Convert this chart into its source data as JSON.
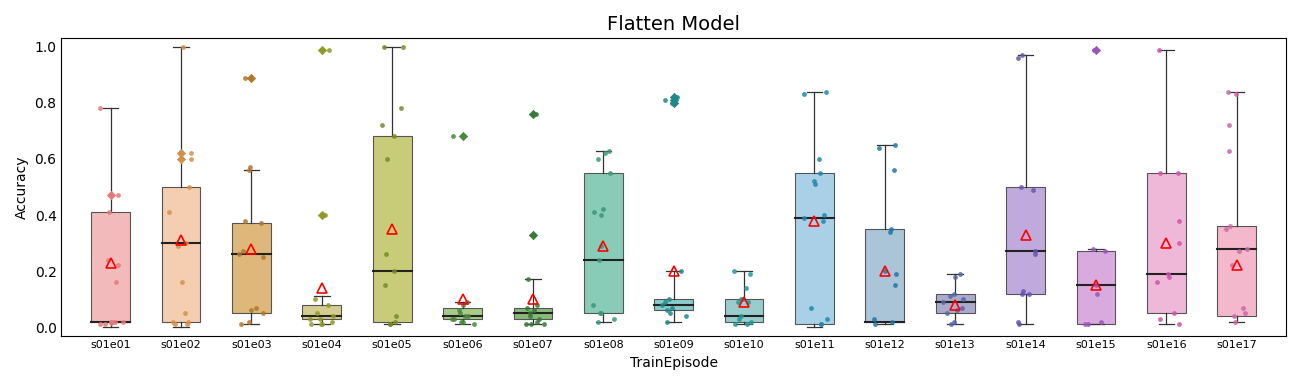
{
  "title": "Flatten Model",
  "xlabel": "TrainEpisode",
  "ylabel": "Accuracy",
  "ylim": [
    -0.03,
    1.03
  ],
  "categories": [
    "s01e01",
    "s01e02",
    "s01e03",
    "s01e04",
    "s01e05",
    "s01e06",
    "s01e07",
    "s01e08",
    "s01e09",
    "s01e10",
    "s01e11",
    "s01e12",
    "s01e13",
    "s01e14",
    "s01e15",
    "s01e16",
    "s01e17"
  ],
  "box_colors": [
    "#f2baba",
    "#f5cdb0",
    "#deb87a",
    "#d4cc90",
    "#c8cc78",
    "#a8cc88",
    "#88bb78",
    "#88ccb8",
    "#88cccc",
    "#99cccc",
    "#aad0e8",
    "#aac4d8",
    "#aaaacc",
    "#c0aadd",
    "#d8aadd",
    "#f0b8d8",
    "#f4b8cc"
  ],
  "dot_colors": [
    "#e87878",
    "#d4904a",
    "#b07828",
    "#909828",
    "#788828",
    "#488840",
    "#387838",
    "#389878",
    "#208888",
    "#209898",
    "#2088aa",
    "#2077aa",
    "#5566aa",
    "#6655aa",
    "#9955bb",
    "#cc55aa",
    "#cc66aa"
  ],
  "box_stats": {
    "s01e01": {
      "whislo": 0.0,
      "q1": 0.02,
      "med": 0.02,
      "q3": 0.41,
      "whishi": 0.78,
      "mean": 0.23,
      "fliers": [
        0.47
      ]
    },
    "s01e02": {
      "whislo": 0.0,
      "q1": 0.02,
      "med": 0.3,
      "q3": 0.5,
      "whishi": 1.0,
      "mean": 0.31,
      "fliers": [
        0.6,
        0.62
      ]
    },
    "s01e03": {
      "whislo": 0.01,
      "q1": 0.05,
      "med": 0.26,
      "q3": 0.37,
      "whishi": 0.56,
      "mean": 0.28,
      "fliers": [
        0.89
      ]
    },
    "s01e04": {
      "whislo": 0.01,
      "q1": 0.03,
      "med": 0.04,
      "q3": 0.08,
      "whishi": 0.11,
      "mean": 0.14,
      "fliers": [
        0.4,
        0.99
      ]
    },
    "s01e05": {
      "whislo": 0.01,
      "q1": 0.02,
      "med": 0.2,
      "q3": 0.68,
      "whishi": 1.0,
      "mean": 0.35,
      "fliers": []
    },
    "s01e06": {
      "whislo": 0.01,
      "q1": 0.03,
      "med": 0.04,
      "q3": 0.07,
      "whishi": 0.09,
      "mean": 0.1,
      "fliers": [
        0.68
      ]
    },
    "s01e07": {
      "whislo": 0.01,
      "q1": 0.03,
      "med": 0.05,
      "q3": 0.07,
      "whishi": 0.17,
      "mean": 0.1,
      "fliers": [
        0.33,
        0.76
      ]
    },
    "s01e08": {
      "whislo": 0.02,
      "q1": 0.05,
      "med": 0.24,
      "q3": 0.55,
      "whishi": 0.63,
      "mean": 0.29,
      "fliers": []
    },
    "s01e09": {
      "whislo": 0.02,
      "q1": 0.06,
      "med": 0.08,
      "q3": 0.1,
      "whishi": 0.2,
      "mean": 0.2,
      "fliers": [
        0.8,
        0.81,
        0.82
      ]
    },
    "s01e10": {
      "whislo": 0.01,
      "q1": 0.02,
      "med": 0.04,
      "q3": 0.1,
      "whishi": 0.2,
      "mean": 0.09,
      "fliers": []
    },
    "s01e11": {
      "whislo": 0.0,
      "q1": 0.01,
      "med": 0.39,
      "q3": 0.55,
      "whishi": 0.84,
      "mean": 0.38,
      "fliers": []
    },
    "s01e12": {
      "whislo": 0.01,
      "q1": 0.02,
      "med": 0.02,
      "q3": 0.35,
      "whishi": 0.65,
      "mean": 0.2,
      "fliers": []
    },
    "s01e13": {
      "whislo": 0.01,
      "q1": 0.05,
      "med": 0.09,
      "q3": 0.12,
      "whishi": 0.19,
      "mean": 0.08,
      "fliers": []
    },
    "s01e14": {
      "whislo": 0.01,
      "q1": 0.12,
      "med": 0.27,
      "q3": 0.5,
      "whishi": 0.97,
      "mean": 0.33,
      "fliers": []
    },
    "s01e15": {
      "whislo": 0.01,
      "q1": 0.01,
      "med": 0.15,
      "q3": 0.27,
      "whishi": 0.28,
      "mean": 0.15,
      "fliers": [
        0.99
      ]
    },
    "s01e16": {
      "whislo": 0.01,
      "q1": 0.05,
      "med": 0.19,
      "q3": 0.55,
      "whishi": 0.99,
      "mean": 0.3,
      "fliers": []
    },
    "s01e17": {
      "whislo": 0.02,
      "q1": 0.04,
      "med": 0.28,
      "q3": 0.36,
      "whishi": 0.84,
      "mean": 0.22,
      "fliers": []
    }
  },
  "strip_data": {
    "s01e01": [
      0.78,
      0.47,
      0.41,
      0.16,
      0.02,
      0.02,
      0.015,
      0.01,
      0.01,
      0.02,
      0.02,
      0.22,
      0.24
    ],
    "s01e02": [
      1.0,
      0.62,
      0.6,
      0.5,
      0.41,
      0.3,
      0.29,
      0.16,
      0.05,
      0.02,
      0.01,
      0.01,
      0.02
    ],
    "s01e03": [
      0.89,
      0.57,
      0.56,
      0.38,
      0.37,
      0.27,
      0.26,
      0.25,
      0.07,
      0.06,
      0.05,
      0.02,
      0.01
    ],
    "s01e04": [
      0.99,
      0.4,
      0.1,
      0.08,
      0.05,
      0.04,
      0.03,
      0.03,
      0.02,
      0.01,
      0.01,
      0.01
    ],
    "s01e05": [
      1.0,
      1.0,
      0.78,
      0.72,
      0.68,
      0.6,
      0.26,
      0.2,
      0.15,
      0.04,
      0.02,
      0.01,
      0.01
    ],
    "s01e06": [
      0.68,
      0.09,
      0.08,
      0.06,
      0.05,
      0.04,
      0.04,
      0.03,
      0.03,
      0.02,
      0.02,
      0.01
    ],
    "s01e07": [
      0.76,
      0.33,
      0.17,
      0.08,
      0.07,
      0.06,
      0.05,
      0.04,
      0.03,
      0.02,
      0.01,
      0.01,
      0.01
    ],
    "s01e08": [
      0.63,
      0.62,
      0.6,
      0.55,
      0.42,
      0.41,
      0.4,
      0.29,
      0.24,
      0.08,
      0.05,
      0.05,
      0.03,
      0.02
    ],
    "s01e09": [
      0.82,
      0.81,
      0.8,
      0.2,
      0.1,
      0.09,
      0.08,
      0.07,
      0.06,
      0.05,
      0.04,
      0.02
    ],
    "s01e10": [
      0.2,
      0.19,
      0.14,
      0.1,
      0.1,
      0.09,
      0.09,
      0.04,
      0.03,
      0.02,
      0.01,
      0.01
    ],
    "s01e11": [
      0.84,
      0.83,
      0.6,
      0.55,
      0.52,
      0.51,
      0.4,
      0.39,
      0.38,
      0.07,
      0.03,
      0.01,
      0.01
    ],
    "s01e12": [
      0.65,
      0.64,
      0.56,
      0.35,
      0.34,
      0.2,
      0.19,
      0.15,
      0.03,
      0.02,
      0.01
    ],
    "s01e13": [
      0.19,
      0.18,
      0.12,
      0.11,
      0.1,
      0.09,
      0.07,
      0.06,
      0.05,
      0.02,
      0.01
    ],
    "s01e14": [
      0.97,
      0.96,
      0.5,
      0.49,
      0.27,
      0.26,
      0.13,
      0.12,
      0.12,
      0.02,
      0.01
    ],
    "s01e15": [
      0.99,
      0.28,
      0.27,
      0.15,
      0.12,
      0.02,
      0.01,
      0.01
    ],
    "s01e16": [
      0.99,
      0.55,
      0.55,
      0.38,
      0.3,
      0.19,
      0.18,
      0.16,
      0.05,
      0.03,
      0.01
    ],
    "s01e17": [
      0.84,
      0.83,
      0.72,
      0.63,
      0.36,
      0.35,
      0.28,
      0.27,
      0.22,
      0.07,
      0.05,
      0.04,
      0.02
    ]
  }
}
